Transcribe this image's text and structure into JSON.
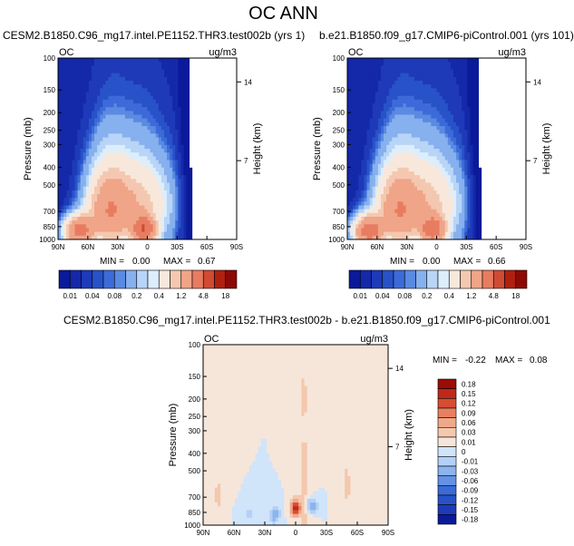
{
  "page": {
    "title": "OC ANN"
  },
  "colors": {
    "abs_fill": [
      "#0a1a9a",
      "#1428aa",
      "#1e3ab8",
      "#2852c8",
      "#3c6ad8",
      "#5a8ae2",
      "#86b0ee",
      "#b8d4f6",
      "#dceefc",
      "#f8e8dc",
      "#f4c8b0",
      "#f0a488",
      "#e87c60",
      "#d04a34",
      "#b02010",
      "#8c0a06"
    ],
    "diff_fill": [
      "#0a1a9a",
      "#1e3ab8",
      "#2852c8",
      "#3c6ad8",
      "#6492e4",
      "#8cb4ee",
      "#b4d0f6",
      "#d0e4fa",
      "#f6e6da",
      "#f4c8ae",
      "#f0a888",
      "#e88060",
      "#d84c34",
      "#c0281a",
      "#9c0c06"
    ]
  },
  "chart_data": [
    {
      "type": "heatmap",
      "name": "panel-left",
      "title": "CESM2.B1850.C96_mg17.intel.PE1152.THR3.test002b (yrs 1)",
      "corner_left": "OC",
      "units": "ug/m3",
      "ylabel": "Pressure (mb)",
      "ylabel_right": "Height (km)",
      "xticks": [
        "90N",
        "60N",
        "30N",
        "0",
        "30S",
        "60S",
        "90S"
      ],
      "yticks": [
        100,
        150,
        200,
        250,
        300,
        400,
        500,
        700,
        850,
        1000
      ],
      "height_ticks": [
        14,
        7
      ],
      "min_label": "MIN =",
      "min_value": "0.00",
      "max_label": "MAX =",
      "max_value": "0.67",
      "colorbar_labels": [
        "0.01",
        "0.04",
        "0.08",
        "0.2",
        "0.4",
        "1.2",
        "4.8",
        "18"
      ],
      "colorbar_cells": 16,
      "field_params": {
        "mode": "abs",
        "nh_peak": 3.2,
        "eq_peak": 4.6,
        "sh_cut_lat": -56
      }
    },
    {
      "type": "heatmap",
      "name": "panel-right",
      "title": "b.e21.B1850.f09_g17.CMIP6-piControl.001 (yrs 101)",
      "corner_left": "OC",
      "units": "ug/m3",
      "ylabel": "Pressure (mb)",
      "ylabel_right": "Height (km)",
      "xticks": [
        "90N",
        "60N",
        "30N",
        "0",
        "30S",
        "60S",
        "90S"
      ],
      "yticks": [
        100,
        150,
        200,
        250,
        300,
        400,
        500,
        700,
        850,
        1000
      ],
      "height_ticks": [
        14,
        7
      ],
      "min_label": "MIN =",
      "min_value": "0.00",
      "max_label": "MAX =",
      "max_value": "0.66",
      "colorbar_labels": [
        "0.01",
        "0.04",
        "0.08",
        "0.2",
        "0.4",
        "1.2",
        "4.8",
        "18"
      ],
      "colorbar_cells": 16,
      "field_params": {
        "mode": "abs",
        "nh_peak": 3.6,
        "eq_peak": 4.0,
        "sh_cut_lat": -44
      }
    },
    {
      "type": "heatmap",
      "name": "panel-diff",
      "title": "CESM2.B1850.C96_mg17.intel.PE1152.THR3.test002b - b.e21.B1850.f09_g17.CMIP6-piControl.001",
      "corner_left": "OC",
      "units": "ug/m3",
      "ylabel": "Pressure (mb)",
      "ylabel_right": "Height (km)",
      "xticks": [
        "90N",
        "60N",
        "30N",
        "0",
        "30S",
        "60S",
        "90S"
      ],
      "yticks": [
        100,
        150,
        200,
        250,
        300,
        400,
        500,
        700,
        850,
        1000
      ],
      "height_ticks": [
        14,
        7
      ],
      "min_label": "MIN =",
      "min_value": "-0.22",
      "max_label": "MAX =",
      "max_value": "0.08",
      "colorbar_labels": [
        "0.18",
        "0.15",
        "0.12",
        "0.09",
        "0.06",
        "0.03",
        "0.01",
        "0",
        "-0.01",
        "-0.03",
        "-0.06",
        "-0.09",
        "-0.12",
        "-0.15",
        "-0.18"
      ],
      "colorbar_cells": 15,
      "field_params": {
        "mode": "diff"
      }
    }
  ]
}
